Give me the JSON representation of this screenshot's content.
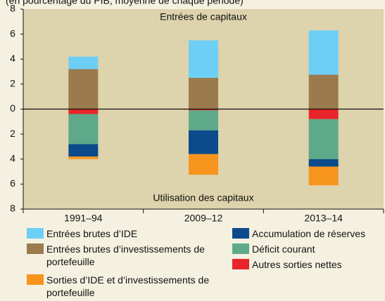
{
  "chart_data": {
    "type": "stacked-bar",
    "subtitle": "(en pourcentage du PIB, moyenne de chaque période)",
    "annotations": [
      "Entrées de capitaux",
      "Utilisation des capitaux"
    ],
    "categories": [
      "1991–94",
      "2009–12",
      "2013–14"
    ],
    "series": [
      {
        "name": "Entrées brutes d’IDE",
        "color": "#6dcff6",
        "values": [
          1.0,
          3.0,
          3.55
        ]
      },
      {
        "name": "Entrées brutes d’investissements de portefeuille",
        "color": "#9b7a4d",
        "values": [
          3.2,
          2.5,
          2.75
        ]
      },
      {
        "name": "Sorties d’IDE et d’investissements de portefeuille",
        "color": "#f7941d",
        "values": [
          -0.2,
          -1.65,
          -1.5
        ]
      },
      {
        "name": "Accumulation de réserves",
        "color": "#0b4a8b",
        "values": [
          -1.0,
          -1.9,
          -0.6
        ]
      },
      {
        "name": "Déficit courant",
        "color": "#5ea98a",
        "values": [
          -2.4,
          -1.6,
          -3.2
        ]
      },
      {
        "name": "Autres sorties nettes",
        "color": "#e8252a",
        "values": [
          -0.4,
          -0.1,
          -0.8
        ]
      }
    ],
    "ylim": [
      -8,
      8
    ],
    "yticks": [
      {
        "value": 8,
        "label": "8"
      },
      6,
      4,
      2,
      0,
      {
        "value": -2,
        "label": "2"
      },
      {
        "value": -4,
        "label": "4"
      },
      {
        "value": -6,
        "label": "6"
      },
      {
        "value": -8,
        "label": "8"
      }
    ]
  }
}
